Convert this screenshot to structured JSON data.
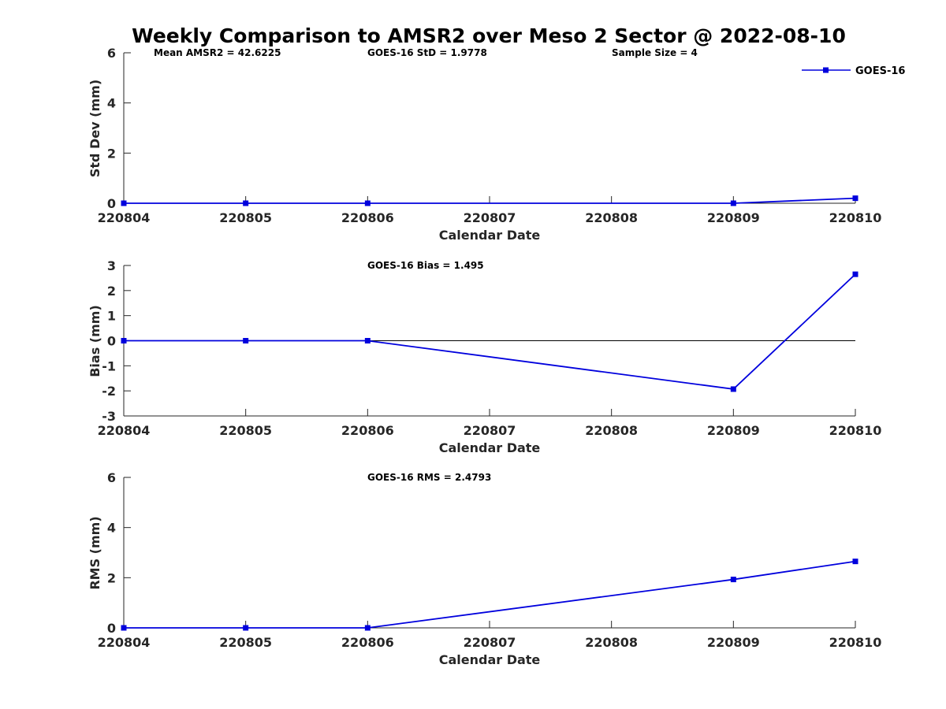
{
  "title": "Weekly Comparison to AMSR2 over Meso 2 Sector @ 2022-08-10",
  "colors": {
    "series": "#0000dd",
    "axis": "#262626",
    "zero_line": "#000000"
  },
  "legend": {
    "label": "GOES-16",
    "placement": "top-right"
  },
  "chart_data": [
    {
      "type": "line",
      "ylabel": "Std Dev (mm)",
      "xlabel": "Calendar Date",
      "x_ticks": [
        "220804",
        "220805",
        "220806",
        "220807",
        "220808",
        "220809",
        "220810"
      ],
      "ylim": [
        0,
        6
      ],
      "y_ticks": [
        0,
        2,
        4,
        6
      ],
      "zero_line": false,
      "annotations": [
        "Mean AMSR2 = 42.6225",
        "GOES-16 StD = 1.9778",
        "Sample Size = 4"
      ],
      "series": [
        {
          "name": "GOES-16",
          "x": [
            "220804",
            "220805",
            "220806",
            "220809",
            "220810"
          ],
          "y": [
            0,
            0,
            0,
            0,
            0.2
          ]
        }
      ]
    },
    {
      "type": "line",
      "ylabel": "Bias (mm)",
      "xlabel": "Calendar Date",
      "x_ticks": [
        "220804",
        "220805",
        "220806",
        "220807",
        "220808",
        "220809",
        "220810"
      ],
      "ylim": [
        -3,
        3
      ],
      "y_ticks": [
        -3,
        -2,
        -1,
        0,
        1,
        2,
        3
      ],
      "zero_line": true,
      "annotations": [
        "GOES-16 Bias  = 1.495"
      ],
      "series": [
        {
          "name": "GOES-16",
          "x": [
            "220804",
            "220805",
            "220806",
            "220809",
            "220810"
          ],
          "y": [
            0,
            0,
            0,
            -1.93,
            2.65
          ]
        }
      ]
    },
    {
      "type": "line",
      "ylabel": "RMS (mm)",
      "xlabel": "Calendar Date",
      "x_ticks": [
        "220804",
        "220805",
        "220806",
        "220807",
        "220808",
        "220809",
        "220810"
      ],
      "ylim": [
        0,
        6
      ],
      "y_ticks": [
        0,
        2,
        4,
        6
      ],
      "zero_line": false,
      "annotations": [
        "GOES-16 RMS = 2.4793"
      ],
      "series": [
        {
          "name": "GOES-16",
          "x": [
            "220804",
            "220805",
            "220806",
            "220809",
            "220810"
          ],
          "y": [
            0,
            0,
            0,
            1.93,
            2.65
          ]
        }
      ]
    }
  ]
}
